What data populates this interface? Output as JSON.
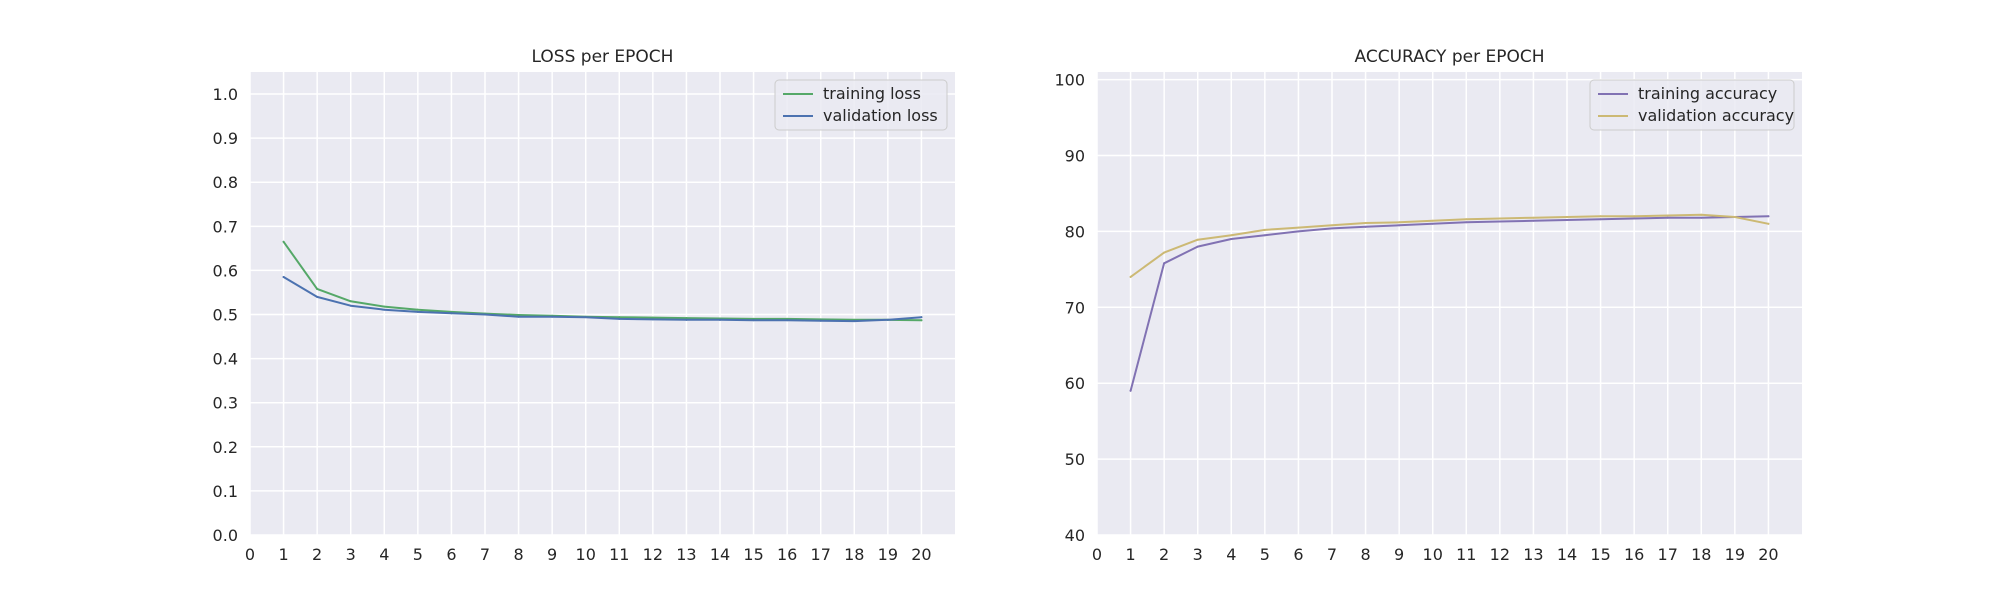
{
  "chart_data": [
    {
      "type": "line",
      "title": "LOSS per EPOCH",
      "xlabel": "",
      "ylabel": "",
      "x": [
        1,
        2,
        3,
        4,
        5,
        6,
        7,
        8,
        9,
        10,
        11,
        12,
        13,
        14,
        15,
        16,
        17,
        18,
        19,
        20
      ],
      "xlim": [
        0,
        21
      ],
      "ylim": [
        0,
        1.05
      ],
      "xticks": [
        "0",
        "1",
        "2",
        "3",
        "4",
        "5",
        "6",
        "7",
        "8",
        "9",
        "10",
        "11",
        "12",
        "13",
        "14",
        "15",
        "16",
        "17",
        "18",
        "19",
        "20"
      ],
      "yticks": [
        "0.0",
        "0.1",
        "0.2",
        "0.3",
        "0.4",
        "0.5",
        "0.6",
        "0.7",
        "0.8",
        "0.9",
        "1.0"
      ],
      "grid": true,
      "legend_position": "top-right",
      "series": [
        {
          "name": "training loss",
          "color": "#55a868",
          "values": [
            0.665,
            0.558,
            0.53,
            0.518,
            0.511,
            0.506,
            0.502,
            0.499,
            0.497,
            0.495,
            0.494,
            0.493,
            0.492,
            0.491,
            0.49,
            0.49,
            0.489,
            0.488,
            0.488,
            0.487
          ]
        },
        {
          "name": "validation loss",
          "color": "#4c72b0",
          "values": [
            0.585,
            0.54,
            0.52,
            0.511,
            0.506,
            0.503,
            0.5,
            0.495,
            0.495,
            0.494,
            0.49,
            0.489,
            0.488,
            0.488,
            0.487,
            0.487,
            0.486,
            0.485,
            0.488,
            0.494
          ]
        }
      ]
    },
    {
      "type": "line",
      "title": "ACCURACY per EPOCH",
      "xlabel": "",
      "ylabel": "",
      "x": [
        1,
        2,
        3,
        4,
        5,
        6,
        7,
        8,
        9,
        10,
        11,
        12,
        13,
        14,
        15,
        16,
        17,
        18,
        19,
        20
      ],
      "xlim": [
        0,
        21
      ],
      "ylim": [
        40,
        101
      ],
      "xticks": [
        "0",
        "1",
        "2",
        "3",
        "4",
        "5",
        "6",
        "7",
        "8",
        "9",
        "10",
        "11",
        "12",
        "13",
        "14",
        "15",
        "16",
        "17",
        "18",
        "19",
        "20"
      ],
      "yticks": [
        "40",
        "50",
        "60",
        "70",
        "80",
        "90",
        "100"
      ],
      "grid": true,
      "legend_position": "top-right",
      "series": [
        {
          "name": "training accuracy",
          "color": "#8172b3",
          "values": [
            59.0,
            75.8,
            78.0,
            79.0,
            79.5,
            80.0,
            80.4,
            80.6,
            80.8,
            81.0,
            81.2,
            81.3,
            81.4,
            81.5,
            81.6,
            81.7,
            81.8,
            81.8,
            81.9,
            82.0
          ]
        },
        {
          "name": "validation accuracy",
          "color": "#ccb974",
          "values": [
            74.0,
            77.2,
            78.9,
            79.5,
            80.2,
            80.5,
            80.8,
            81.1,
            81.2,
            81.4,
            81.6,
            81.7,
            81.8,
            81.9,
            82.0,
            82.0,
            82.1,
            82.2,
            81.9,
            81.0
          ]
        }
      ]
    }
  ]
}
